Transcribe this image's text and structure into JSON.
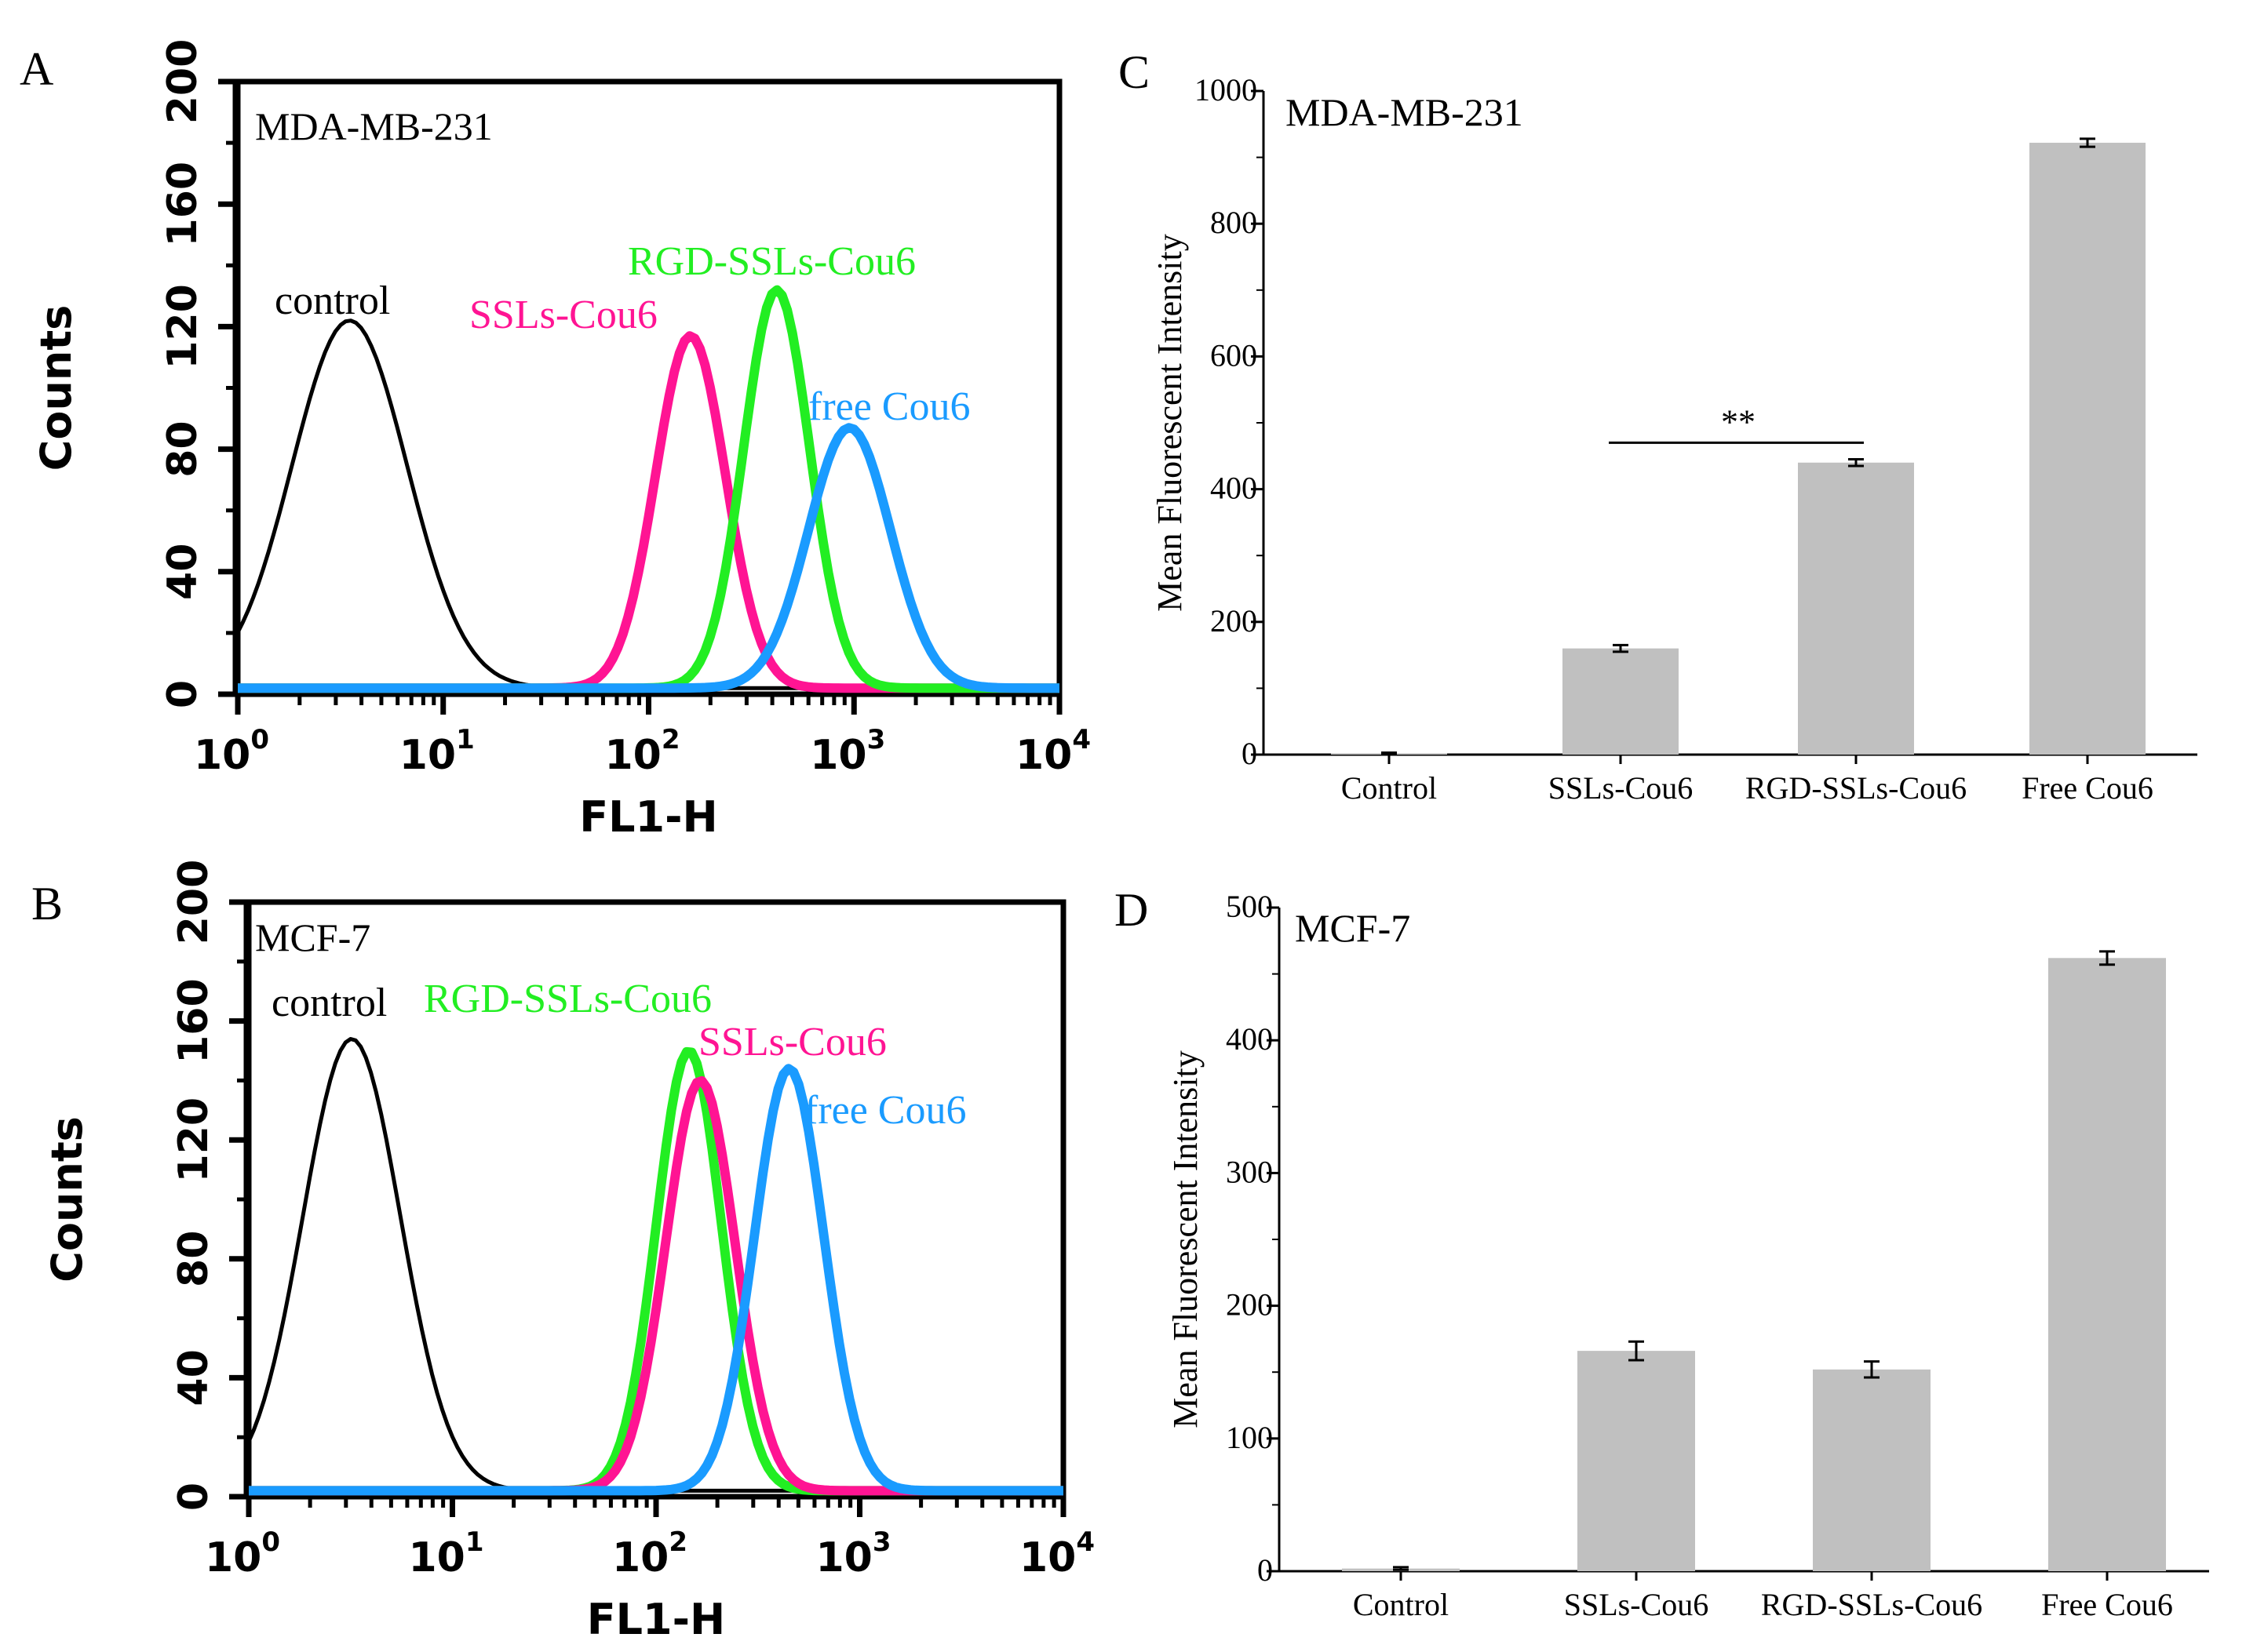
{
  "chart_data": [
    {
      "panel": "A",
      "type": "line",
      "subtype": "flow-cytometry-histogram",
      "cell_line": "MDA-MB-231",
      "xlabel": "FL1-H",
      "ylabel": "Counts",
      "xscale": "log",
      "xlim": [
        1,
        10000
      ],
      "ylim": [
        0,
        200
      ],
      "x_ticks": [
        {
          "base": "10",
          "exp": "0"
        },
        {
          "base": "10",
          "exp": "1"
        },
        {
          "base": "10",
          "exp": "2"
        },
        {
          "base": "10",
          "exp": "3"
        },
        {
          "base": "10",
          "exp": "4"
        }
      ],
      "y_ticks": [
        "0",
        "40",
        "80",
        "120",
        "160",
        "200"
      ],
      "series": [
        {
          "name": "control",
          "color": "#000000",
          "peak_x": 3.5,
          "peak_y": 120,
          "width": 0.28
        },
        {
          "name": "SSLs-Cou6",
          "color": "#ff1493",
          "peak_x": 160,
          "peak_y": 115,
          "width": 0.17
        },
        {
          "name": "RGD-SSLs-Cou6",
          "color": "#22ee22",
          "peak_x": 420,
          "peak_y": 130,
          "width": 0.16
        },
        {
          "name": "free Cou6",
          "color": "#1a9bff",
          "peak_x": 950,
          "peak_y": 85,
          "width": 0.2
        }
      ]
    },
    {
      "panel": "B",
      "type": "line",
      "subtype": "flow-cytometry-histogram",
      "cell_line": "MCF-7",
      "xlabel": "FL1-H",
      "ylabel": "Counts",
      "xscale": "log",
      "xlim": [
        1,
        10000
      ],
      "ylim": [
        0,
        200
      ],
      "x_ticks": [
        {
          "base": "10",
          "exp": "0"
        },
        {
          "base": "10",
          "exp": "1"
        },
        {
          "base": "10",
          "exp": "2"
        },
        {
          "base": "10",
          "exp": "3"
        },
        {
          "base": "10",
          "exp": "4"
        }
      ],
      "y_ticks": [
        "0",
        "40",
        "80",
        "120",
        "160",
        "200"
      ],
      "series": [
        {
          "name": "control",
          "color": "#000000",
          "peak_x": 3.2,
          "peak_y": 152,
          "width": 0.24
        },
        {
          "name": "RGD-SSLs-Cou6",
          "color": "#22ee22",
          "peak_x": 145,
          "peak_y": 148,
          "width": 0.16
        },
        {
          "name": "SSLs-Cou6",
          "color": "#ff1493",
          "peak_x": 165,
          "peak_y": 138,
          "width": 0.17
        },
        {
          "name": "free Cou6",
          "color": "#1a9bff",
          "peak_x": 450,
          "peak_y": 142,
          "width": 0.17
        }
      ]
    },
    {
      "panel": "C",
      "type": "bar",
      "cell_line": "MDA-MB-231",
      "ylabel": "Mean Fluorescent Intensity",
      "ylim": [
        0,
        1000
      ],
      "y_ticks": [
        "0",
        "200",
        "400",
        "600",
        "800",
        "1000"
      ],
      "categories": [
        "Control",
        "SSLs-Cou6",
        "RGD-SSLs-Cou6",
        "Free Cou6"
      ],
      "values": [
        2,
        160,
        440,
        922
      ],
      "errors": [
        1,
        5,
        5,
        6
      ],
      "bar_color": "#c0c0c0",
      "significance": {
        "from": "SSLs-Cou6",
        "to": "RGD-SSLs-Cou6",
        "label": "**"
      }
    },
    {
      "panel": "D",
      "type": "bar",
      "cell_line": "MCF-7",
      "ylabel": "Mean Fluorescent Intensity",
      "ylim": [
        0,
        500
      ],
      "y_ticks": [
        "0",
        "100",
        "200",
        "300",
        "400",
        "500"
      ],
      "categories": [
        "Control",
        "SSLs-Cou6",
        "RGD-SSLs-Cou6",
        "Free Cou6"
      ],
      "values": [
        2,
        166,
        152,
        462
      ],
      "errors": [
        1,
        7,
        6,
        5
      ],
      "bar_color": "#c0c0c0"
    }
  ]
}
